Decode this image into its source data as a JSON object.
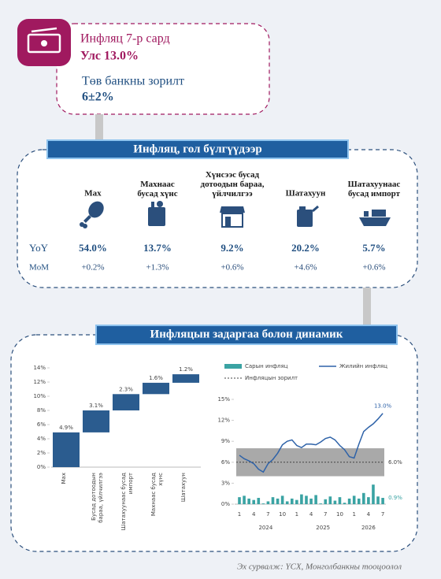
{
  "header": {
    "title": "Инфляц 7-р сард",
    "value": "Улс 13.0%",
    "target_title": "Төв банкны зорилт",
    "target": "6±2%"
  },
  "groups": {
    "title": "Инфляц, гол бүлгүүдээр",
    "row_labels": [
      "YoY",
      "MoM"
    ],
    "items": [
      {
        "name": "Мах",
        "yoy": "54.0%",
        "mom": "+0.2%"
      },
      {
        "name": "Махнаас\nбусад хүнс",
        "yoy": "13.7%",
        "mom": "+1.3%"
      },
      {
        "name": "Хүнсээс бусад\nдотоодын бараа,\nүйлчилгээ",
        "yoy": "9.2%",
        "mom": "+0.6%"
      },
      {
        "name": "Шатахуун",
        "yoy": "20.2%",
        "mom": "+4.6%"
      },
      {
        "name": "Шатахуунаас\nбусад импорт",
        "yoy": "5.7%",
        "mom": "+0.6%"
      }
    ]
  },
  "section_title": "Инфляцын задаргаа болон динамик",
  "chart_data": [
    {
      "type": "waterfall",
      "color": "#2b5c8f",
      "categories": [
        "Мах",
        "Бусад дотоодын\nбараа, үйлчилгээ",
        "Шатахуунаас бусад\nимпорт",
        "Махнаас бусад\nхүнс",
        "Шатахуун"
      ],
      "values": [
        4.9,
        3.1,
        2.3,
        1.6,
        1.2
      ],
      "value_labels": [
        "4.9%",
        "3.1%",
        "2.3%",
        "1.6%",
        "1.2%"
      ],
      "ylim": [
        0,
        14
      ],
      "yticks": [
        {
          "value": 0,
          "label": "0%"
        },
        {
          "value": 2,
          "label": "2%"
        },
        {
          "value": 4,
          "label": "4%"
        },
        {
          "value": 6,
          "label": "6%"
        },
        {
          "value": 8,
          "label": "8%"
        },
        {
          "value": 10,
          "label": "10%"
        },
        {
          "value": 12,
          "label": "12%"
        },
        {
          "value": 14,
          "label": "14%"
        }
      ]
    },
    {
      "type": "combo",
      "categories": [
        "1",
        null,
        null,
        "4",
        null,
        null,
        "7",
        null,
        null,
        "10",
        null,
        null,
        "1",
        null,
        null,
        "4",
        null,
        null,
        "7",
        null,
        null,
        "10",
        null,
        null,
        "1",
        null,
        null,
        "4",
        null,
        null,
        "7"
      ],
      "groups": [
        "2024",
        "2025",
        "2026"
      ],
      "ylim": [
        0,
        15
      ],
      "yticks": [
        {
          "value": 0,
          "label": "0%"
        },
        {
          "value": 3,
          "label": "3%"
        },
        {
          "value": 6,
          "label": "6%"
        },
        {
          "value": 9,
          "label": "9%"
        },
        {
          "value": 12,
          "label": "12%"
        },
        {
          "value": 15,
          "label": "15%"
        }
      ],
      "series": [
        {
          "name": "Сарын инфляц",
          "type": "bar",
          "color": "#3aa3a3",
          "values": [
            1.0,
            1.2,
            0.8,
            0.6,
            0.9,
            0.1,
            0.4,
            1.0,
            0.8,
            1.2,
            0.4,
            0.8,
            0.6,
            1.4,
            1.2,
            0.8,
            1.3,
            0.1,
            0.7,
            1.1,
            0.5,
            1.0,
            0.2,
            0.8,
            1.2,
            0.8,
            1.6,
            1.0,
            2.8,
            1.1,
            0.9
          ],
          "value_labels": [
            null,
            null,
            null,
            null,
            null,
            null,
            null,
            null,
            null,
            null,
            null,
            null,
            null,
            null,
            null,
            null,
            null,
            null,
            null,
            null,
            null,
            null,
            null,
            null,
            null,
            null,
            null,
            null,
            null,
            null,
            "0.9%"
          ]
        },
        {
          "name": "Жилийн инфляц",
          "type": "line",
          "color": "#2e62a8",
          "values": [
            7.0,
            6.5,
            6.2,
            5.8,
            5.0,
            4.6,
            5.8,
            6.4,
            7.3,
            8.5,
            9.0,
            9.2,
            8.4,
            8.1,
            8.6,
            8.6,
            8.5,
            8.9,
            9.4,
            9.6,
            9.2,
            8.4,
            7.8,
            6.8,
            6.6,
            8.6,
            10.4,
            11.0,
            11.5,
            12.2,
            13.0
          ],
          "value_labels": [
            null,
            null,
            null,
            null,
            null,
            null,
            null,
            null,
            null,
            null,
            null,
            null,
            null,
            null,
            null,
            null,
            null,
            null,
            null,
            null,
            null,
            null,
            null,
            null,
            null,
            null,
            null,
            null,
            null,
            null,
            "13.0%"
          ]
        },
        {
          "name": "Инфляцын зорилт",
          "type": "target",
          "color": "#444444",
          "value": 6.0,
          "value_label": "6.0%",
          "band": [
            4,
            8
          ],
          "band_color": "#a9a9a9"
        }
      ]
    }
  ],
  "source": "Эх сурвалж: ҮСХ, Монголбанкны тооцоолол"
}
